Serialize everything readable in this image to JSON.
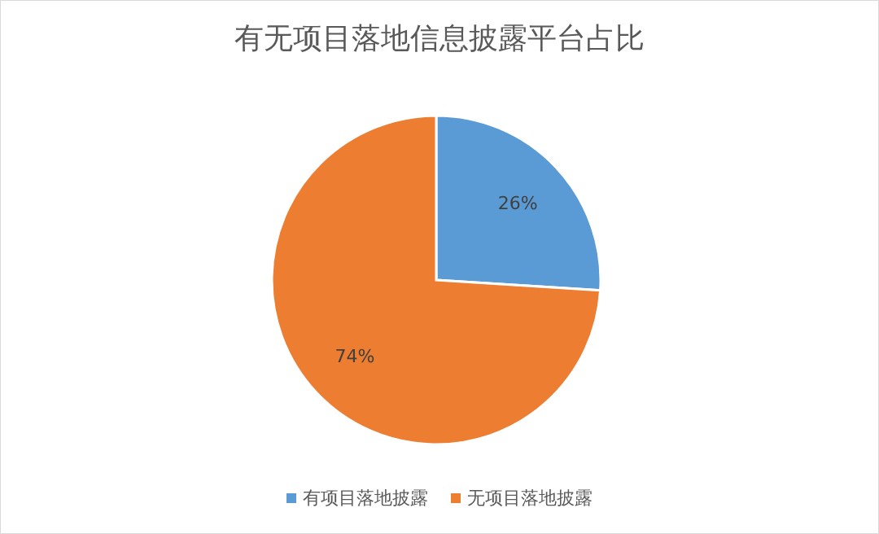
{
  "chart_data": {
    "type": "pie",
    "title": "有无项目落地信息披露平台占比",
    "categories": [
      "有项目落地披露",
      "无项目落地披露"
    ],
    "values": [
      26,
      74
    ],
    "colors": [
      "#5b9bd5",
      "#ed7d31"
    ],
    "value_labels": [
      "26%",
      "74%"
    ],
    "legend": "bottom"
  }
}
